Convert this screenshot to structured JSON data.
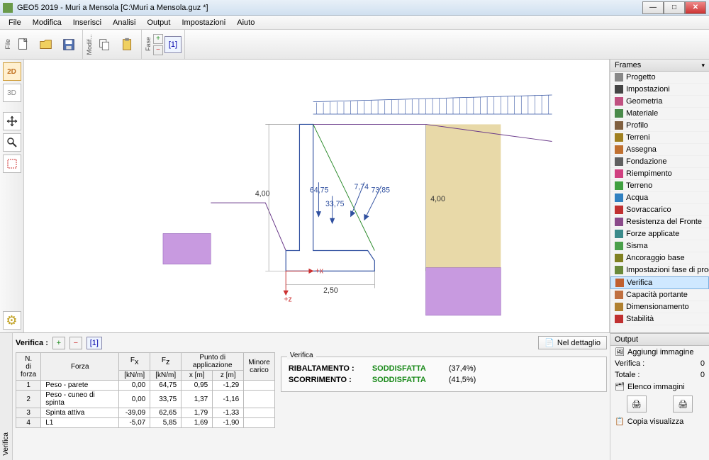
{
  "window": {
    "title": "GEO5 2019 - Muri a Mensola   [C:\\Muri a Mensola.guz *]"
  },
  "menu": [
    "File",
    "Modifica",
    "Inserisci",
    "Analisi",
    "Output",
    "Impostazioni",
    "Aiuto"
  ],
  "toolbar": {
    "group_file": "File",
    "group_modif": "Modif...",
    "group_fase": "Fase",
    "stage_label": "[1]"
  },
  "left_tools": {
    "btn_2d": "2D",
    "btn_3d": "3D"
  },
  "drawing": {
    "dim_height": "4,00",
    "dim_height_right": "4,00",
    "dim_width": "2,50",
    "axis_x": "+x",
    "axis_z": "+z",
    "force_vals": [
      "64,75",
      "33,75",
      "7,74",
      "73,85"
    ],
    "colors": {
      "terrain_fill": "#e8d9a8",
      "terrain_stroke": "#706040",
      "hatch_block": "#c89ae0",
      "wall_stroke": "#3050a0",
      "arrow": "#3050a0",
      "soil_line": "#6a3a8a",
      "green_line": "#2a8a2a",
      "dim_line": "#888"
    }
  },
  "frames": {
    "title": "Frames",
    "items": [
      {
        "label": "Progetto",
        "color": "#888"
      },
      {
        "label": "Impostazioni",
        "color": "#444"
      },
      {
        "label": "Geometria",
        "color": "#c05080"
      },
      {
        "label": "Materiale",
        "color": "#4a8a4a"
      },
      {
        "label": "Profilo",
        "color": "#806040"
      },
      {
        "label": "Terreni",
        "color": "#a08020"
      },
      {
        "label": "Assegna",
        "color": "#c07030"
      },
      {
        "label": "Fondazione",
        "color": "#606060"
      },
      {
        "label": "Riempimento",
        "color": "#d04080"
      },
      {
        "label": "Terreno",
        "color": "#40a040"
      },
      {
        "label": "Acqua",
        "color": "#3080c0"
      },
      {
        "label": "Sovraccarico",
        "color": "#c03030"
      },
      {
        "label": "Resistenza del Fronte",
        "color": "#8a4a8a"
      },
      {
        "label": "Forze applicate",
        "color": "#3a8a8a"
      },
      {
        "label": "Sisma",
        "color": "#4aa04a"
      },
      {
        "label": "Ancoraggio base",
        "color": "#808020"
      },
      {
        "label": "Impostazioni fase di progetto",
        "color": "#6a8a3a"
      },
      {
        "label": "Verifica",
        "color": "#c06030",
        "selected": true
      },
      {
        "label": "Capacità portante",
        "color": "#c07040"
      },
      {
        "label": "Dimensionamento",
        "color": "#b08030"
      },
      {
        "label": "Stabilità",
        "color": "#c03030"
      }
    ]
  },
  "bottom": {
    "tab_label": "Verifica",
    "header_label": "Verifica :",
    "stage": "[1]",
    "detail_btn": "Nel dettaglio",
    "table": {
      "headers": {
        "n": "N.\ndi forza",
        "forza": "Forza",
        "fx": "Fx\n[kN/m]",
        "fz": "Fz\n[kN/m]",
        "punto": "Punto di applicazione",
        "x": "x [m]",
        "z": "z [m]",
        "minore": "Minore\ncarico"
      },
      "rows": [
        {
          "n": "1",
          "forza": "Peso - parete",
          "fx": "0,00",
          "fz": "64,75",
          "x": "0,95",
          "z": "-1,29"
        },
        {
          "n": "2",
          "forza": "Peso - cuneo di spinta",
          "fx": "0,00",
          "fz": "33,75",
          "x": "1,37",
          "z": "-1,16"
        },
        {
          "n": "3",
          "forza": "Spinta attiva",
          "fx": "-39,09",
          "fz": "62,65",
          "x": "1,79",
          "z": "-1,33"
        },
        {
          "n": "4",
          "forza": "L1",
          "fx": "-5,07",
          "fz": "5,85",
          "x": "1,69",
          "z": "-1,90"
        }
      ]
    },
    "verify": {
      "legend": "Verifica",
      "rows": [
        {
          "label": "RIBALTAMENTO :",
          "status": "SODDISFATTA",
          "pct": "(37,4%)"
        },
        {
          "label": "SCORRIMENTO :",
          "status": "SODDISFATTA",
          "pct": "(41,5%)"
        }
      ]
    }
  },
  "output": {
    "title": "Output",
    "add_image": "Aggiungi immagine",
    "verify_label": "Verifica :",
    "verify_val": "0",
    "total_label": "Totale :",
    "total_val": "0",
    "list_images": "Elenco immagini",
    "copy": "Copia  visualizza"
  }
}
